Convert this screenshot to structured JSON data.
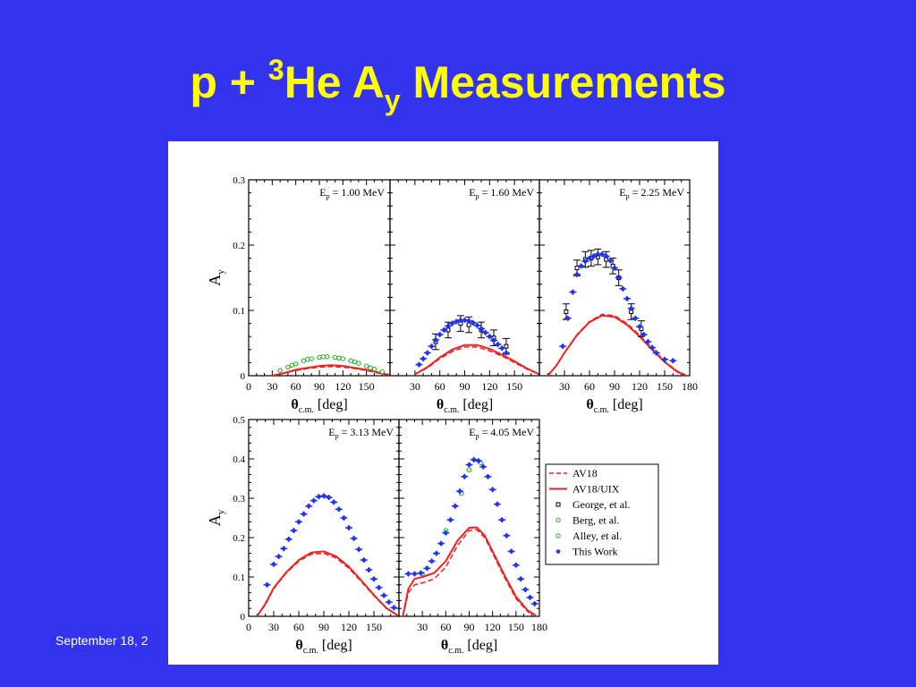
{
  "slide": {
    "title_pre": "p + ",
    "title_sup": "3",
    "title_mid": "He A",
    "title_sub": "y",
    "title_post": " Measurements",
    "footer_date": "September 18, 2"
  },
  "chart_data": {
    "type": "scatter",
    "ylabel": "A",
    "ylabel_sub": "y",
    "xlabel": "θ",
    "xlabel_sub": "c.m.",
    "xlabel_unit": "[deg]",
    "colors": {
      "av18": "#ee2222",
      "uix": "#ee2222",
      "george": "#000000",
      "berg": "#22aa22",
      "alley": "#22aa22",
      "thiswork": "#2233ee"
    },
    "legend": {
      "placement": "right of lower row",
      "entries": [
        {
          "key": "av18",
          "label": "AV18",
          "style": "dashed"
        },
        {
          "key": "uix",
          "label": "AV18/UIX",
          "style": "solid"
        },
        {
          "key": "george",
          "label": "George, et al.",
          "style": "open-square"
        },
        {
          "key": "berg",
          "label": "Berg, et al.",
          "style": "open-circle"
        },
        {
          "key": "alley",
          "label": "Alley, et al.",
          "style": "open-circle"
        },
        {
          "key": "thiswork",
          "label": "This Work",
          "style": "filled-circle"
        }
      ]
    },
    "panels": [
      {
        "label": "E",
        "label_sub": "p",
        "label_val": " = 1.00 MeV",
        "xlim": [
          0,
          180
        ],
        "ylim": [
          0,
          0.3
        ],
        "xticks": [
          "0",
          "30",
          "60",
          "90",
          "120",
          "150"
        ],
        "yticks": [
          "0",
          "0.1",
          "0.2",
          "0.3"
        ],
        "av18": [
          [
            30,
            0.0
          ],
          [
            45,
            0.004
          ],
          [
            60,
            0.008
          ],
          [
            75,
            0.011
          ],
          [
            90,
            0.013
          ],
          [
            105,
            0.014
          ],
          [
            120,
            0.013
          ],
          [
            135,
            0.011
          ],
          [
            150,
            0.008
          ],
          [
            165,
            0.004
          ],
          [
            180,
            0.001
          ]
        ],
        "uix": [
          [
            30,
            0.0
          ],
          [
            45,
            0.004
          ],
          [
            60,
            0.009
          ],
          [
            75,
            0.012
          ],
          [
            90,
            0.015
          ],
          [
            105,
            0.016
          ],
          [
            120,
            0.015
          ],
          [
            135,
            0.012
          ],
          [
            150,
            0.009
          ],
          [
            165,
            0.005
          ],
          [
            180,
            0.001
          ]
        ],
        "george": [],
        "berg": [
          [
            40,
            0.008
          ],
          [
            50,
            0.013
          ],
          [
            60,
            0.018
          ],
          [
            70,
            0.023
          ],
          [
            80,
            0.026
          ],
          [
            90,
            0.028
          ],
          [
            100,
            0.029
          ],
          [
            110,
            0.028
          ],
          [
            120,
            0.026
          ],
          [
            130,
            0.023
          ],
          [
            140,
            0.019
          ],
          [
            150,
            0.015
          ],
          [
            160,
            0.01
          ],
          [
            170,
            0.006
          ]
        ],
        "alley": [
          [
            55,
            0.016
          ],
          [
            75,
            0.025
          ],
          [
            95,
            0.029
          ],
          [
            115,
            0.027
          ],
          [
            135,
            0.021
          ],
          [
            155,
            0.012
          ]
        ],
        "thiswork": []
      },
      {
        "label": "E",
        "label_sub": "p",
        "label_val": " = 1.60 MeV",
        "xlim": [
          0,
          180
        ],
        "ylim": [
          0,
          0.3
        ],
        "xticks": [
          "30",
          "60",
          "90",
          "120",
          "150"
        ],
        "yticks": [],
        "av18": [
          [
            30,
            0.002
          ],
          [
            45,
            0.012
          ],
          [
            60,
            0.026
          ],
          [
            75,
            0.037
          ],
          [
            90,
            0.044
          ],
          [
            105,
            0.044
          ],
          [
            120,
            0.038
          ],
          [
            135,
            0.03
          ],
          [
            150,
            0.02
          ],
          [
            165,
            0.01
          ],
          [
            180,
            0.002
          ]
        ],
        "uix": [
          [
            30,
            0.002
          ],
          [
            45,
            0.013
          ],
          [
            60,
            0.028
          ],
          [
            75,
            0.04
          ],
          [
            90,
            0.047
          ],
          [
            105,
            0.047
          ],
          [
            120,
            0.041
          ],
          [
            135,
            0.032
          ],
          [
            150,
            0.022
          ],
          [
            165,
            0.011
          ],
          [
            180,
            0.002
          ]
        ],
        "george": [
          [
            55,
            0.052
          ],
          [
            70,
            0.07
          ],
          [
            85,
            0.08
          ],
          [
            95,
            0.078
          ],
          [
            110,
            0.07
          ],
          [
            125,
            0.058
          ],
          [
            140,
            0.045
          ]
        ],
        "berg": [],
        "alley": [],
        "thiswork": [
          [
            35,
            0.017
          ],
          [
            40,
            0.026
          ],
          [
            45,
            0.035
          ],
          [
            50,
            0.045
          ],
          [
            55,
            0.055
          ],
          [
            60,
            0.063
          ],
          [
            65,
            0.07
          ],
          [
            70,
            0.076
          ],
          [
            75,
            0.08
          ],
          [
            80,
            0.083
          ],
          [
            85,
            0.085
          ],
          [
            90,
            0.085
          ],
          [
            95,
            0.084
          ],
          [
            100,
            0.081
          ],
          [
            105,
            0.077
          ],
          [
            110,
            0.072
          ],
          [
            115,
            0.066
          ],
          [
            120,
            0.06
          ],
          [
            125,
            0.054
          ],
          [
            130,
            0.048
          ],
          [
            135,
            0.042
          ],
          [
            140,
            0.035
          ]
        ]
      },
      {
        "label": "E",
        "label_sub": "p",
        "label_val": " = 2.25 MeV",
        "xlim": [
          0,
          180
        ],
        "ylim": [
          0,
          0.3
        ],
        "xticks": [
          "30",
          "60",
          "90",
          "120",
          "150",
          "180"
        ],
        "yticks": [],
        "av18": [
          [
            10,
            0.0
          ],
          [
            20,
            0.015
          ],
          [
            30,
            0.035
          ],
          [
            45,
            0.063
          ],
          [
            60,
            0.083
          ],
          [
            75,
            0.094
          ],
          [
            90,
            0.092
          ],
          [
            105,
            0.08
          ],
          [
            120,
            0.062
          ],
          [
            135,
            0.042
          ],
          [
            150,
            0.022
          ],
          [
            165,
            0.007
          ],
          [
            175,
            0.001
          ]
        ],
        "uix": [
          [
            10,
            0.0
          ],
          [
            20,
            0.015
          ],
          [
            30,
            0.035
          ],
          [
            45,
            0.062
          ],
          [
            60,
            0.082
          ],
          [
            75,
            0.092
          ],
          [
            90,
            0.09
          ],
          [
            105,
            0.078
          ],
          [
            120,
            0.06
          ],
          [
            135,
            0.04
          ],
          [
            150,
            0.021
          ],
          [
            165,
            0.006
          ],
          [
            175,
            0.001
          ]
        ],
        "george": [
          [
            32,
            0.098
          ],
          [
            45,
            0.165
          ],
          [
            55,
            0.178
          ],
          [
            62,
            0.18
          ],
          [
            70,
            0.182
          ],
          [
            80,
            0.178
          ],
          [
            88,
            0.168
          ],
          [
            95,
            0.15
          ],
          [
            110,
            0.098
          ],
          [
            122,
            0.072
          ]
        ],
        "berg": [],
        "alley": [],
        "thiswork": [
          [
            28,
            0.045
          ],
          [
            34,
            0.088
          ],
          [
            40,
            0.128
          ],
          [
            45,
            0.155
          ],
          [
            50,
            0.168
          ],
          [
            55,
            0.175
          ],
          [
            60,
            0.18
          ],
          [
            65,
            0.183
          ],
          [
            70,
            0.186
          ],
          [
            75,
            0.186
          ],
          [
            80,
            0.183
          ],
          [
            85,
            0.176
          ],
          [
            90,
            0.165
          ],
          [
            95,
            0.15
          ],
          [
            100,
            0.133
          ],
          [
            105,
            0.118
          ],
          [
            110,
            0.103
          ],
          [
            115,
            0.088
          ],
          [
            120,
            0.075
          ],
          [
            125,
            0.063
          ],
          [
            130,
            0.052
          ],
          [
            135,
            0.043
          ],
          [
            140,
            0.035
          ],
          [
            150,
            0.025
          ],
          [
            160,
            0.023
          ]
        ]
      },
      {
        "label": "E",
        "label_sub": "p",
        "label_val": " = 3.13 MeV",
        "xlim": [
          0,
          180
        ],
        "ylim": [
          0,
          0.5
        ],
        "xticks": [
          "0",
          "30",
          "60",
          "90",
          "120",
          "150"
        ],
        "yticks": [
          "0",
          "0.1",
          "0.2",
          "0.3",
          "0.4",
          "0.5"
        ],
        "av18": [
          [
            10,
            0.0
          ],
          [
            20,
            0.03
          ],
          [
            30,
            0.07
          ],
          [
            45,
            0.11
          ],
          [
            60,
            0.14
          ],
          [
            75,
            0.158
          ],
          [
            90,
            0.16
          ],
          [
            105,
            0.148
          ],
          [
            120,
            0.122
          ],
          [
            135,
            0.088
          ],
          [
            150,
            0.052
          ],
          [
            165,
            0.02
          ],
          [
            180,
            0.0
          ]
        ],
        "uix": [
          [
            10,
            0.0
          ],
          [
            20,
            0.032
          ],
          [
            30,
            0.072
          ],
          [
            45,
            0.112
          ],
          [
            60,
            0.143
          ],
          [
            75,
            0.162
          ],
          [
            90,
            0.165
          ],
          [
            105,
            0.152
          ],
          [
            120,
            0.126
          ],
          [
            135,
            0.091
          ],
          [
            150,
            0.054
          ],
          [
            165,
            0.021
          ],
          [
            180,
            0.0
          ]
        ],
        "george": [],
        "berg": [],
        "alley": [],
        "thiswork": [
          [
            22,
            0.08
          ],
          [
            30,
            0.132
          ],
          [
            36,
            0.152
          ],
          [
            42,
            0.172
          ],
          [
            48,
            0.196
          ],
          [
            54,
            0.218
          ],
          [
            60,
            0.24
          ],
          [
            66,
            0.26
          ],
          [
            72,
            0.28
          ],
          [
            78,
            0.294
          ],
          [
            84,
            0.304
          ],
          [
            90,
            0.306
          ],
          [
            96,
            0.302
          ],
          [
            102,
            0.29
          ],
          [
            108,
            0.272
          ],
          [
            114,
            0.25
          ],
          [
            120,
            0.225
          ],
          [
            126,
            0.198
          ],
          [
            132,
            0.17
          ],
          [
            138,
            0.143
          ],
          [
            144,
            0.118
          ],
          [
            150,
            0.095
          ],
          [
            156,
            0.073
          ],
          [
            162,
            0.053
          ],
          [
            168,
            0.036
          ],
          [
            174,
            0.022
          ]
        ]
      },
      {
        "label": "E",
        "label_sub": "p",
        "label_val": " = 4.05 MeV",
        "xlim": [
          0,
          180
        ],
        "ylim": [
          0,
          0.5
        ],
        "xticks": [
          "30",
          "60",
          "90",
          "120",
          "150",
          "180"
        ],
        "yticks": [],
        "av18": [
          [
            5,
            0.0
          ],
          [
            12,
            0.06
          ],
          [
            20,
            0.08
          ],
          [
            30,
            0.085
          ],
          [
            45,
            0.095
          ],
          [
            60,
            0.125
          ],
          [
            75,
            0.18
          ],
          [
            90,
            0.218
          ],
          [
            100,
            0.22
          ],
          [
            110,
            0.2
          ],
          [
            120,
            0.16
          ],
          [
            135,
            0.1
          ],
          [
            150,
            0.045
          ],
          [
            165,
            0.012
          ],
          [
            175,
            0.002
          ]
        ],
        "uix": [
          [
            5,
            0.0
          ],
          [
            12,
            0.07
          ],
          [
            20,
            0.095
          ],
          [
            30,
            0.1
          ],
          [
            45,
            0.11
          ],
          [
            60,
            0.14
          ],
          [
            75,
            0.192
          ],
          [
            90,
            0.225
          ],
          [
            100,
            0.226
          ],
          [
            110,
            0.205
          ],
          [
            120,
            0.165
          ],
          [
            135,
            0.105
          ],
          [
            150,
            0.05
          ],
          [
            165,
            0.015
          ],
          [
            175,
            0.003
          ]
        ],
        "george": [],
        "berg": [
          [
            30,
            0.108
          ],
          [
            60,
            0.218
          ],
          [
            80,
            0.312
          ],
          [
            90,
            0.372
          ],
          [
            105,
            0.39
          ]
        ],
        "alley": [],
        "thiswork": [
          [
            12,
            0.108
          ],
          [
            20,
            0.108
          ],
          [
            28,
            0.11
          ],
          [
            36,
            0.122
          ],
          [
            42,
            0.14
          ],
          [
            48,
            0.16
          ],
          [
            54,
            0.185
          ],
          [
            60,
            0.212
          ],
          [
            66,
            0.245
          ],
          [
            72,
            0.28
          ],
          [
            78,
            0.318
          ],
          [
            84,
            0.355
          ],
          [
            90,
            0.385
          ],
          [
            96,
            0.398
          ],
          [
            102,
            0.395
          ],
          [
            108,
            0.38
          ],
          [
            114,
            0.355
          ],
          [
            120,
            0.322
          ],
          [
            126,
            0.285
          ],
          [
            132,
            0.245
          ],
          [
            138,
            0.205
          ],
          [
            144,
            0.165
          ],
          [
            150,
            0.13
          ],
          [
            156,
            0.095
          ],
          [
            162,
            0.068
          ],
          [
            168,
            0.048
          ],
          [
            174,
            0.032
          ]
        ]
      }
    ]
  }
}
